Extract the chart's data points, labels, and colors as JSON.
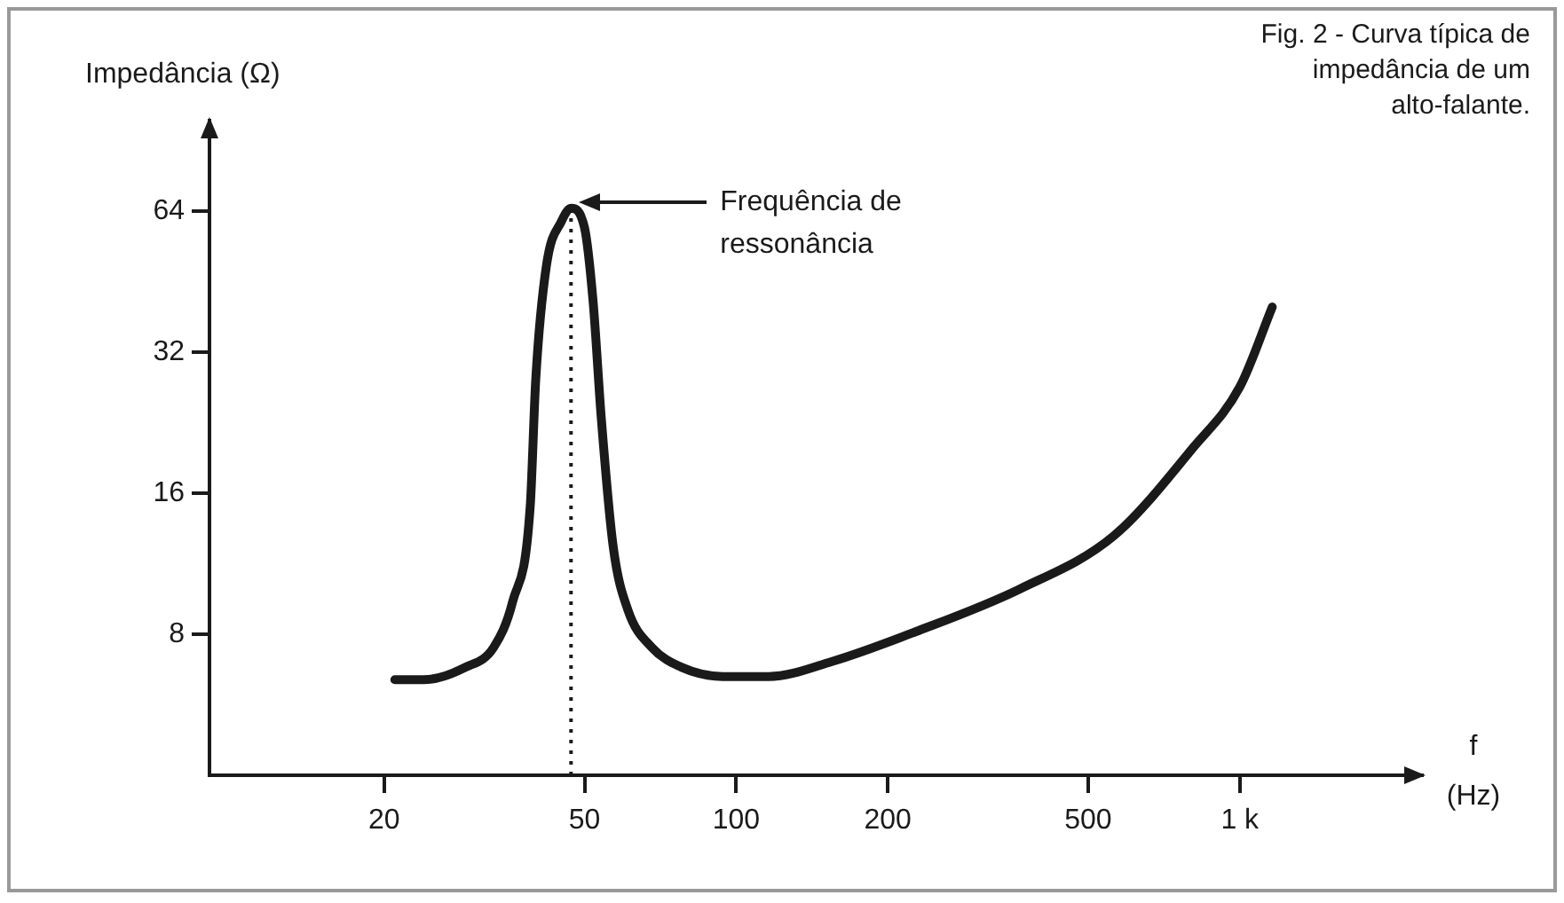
{
  "chart_data": {
    "type": "line",
    "title": "Fig. 2 - Curva típica de impedância de um alto-falante.",
    "xlabel": "f (Hz)",
    "ylabel": "Impedância (Ω)",
    "x": [
      21,
      24,
      29,
      33,
      36,
      39,
      40,
      42,
      45,
      47,
      50,
      52,
      54,
      57,
      61,
      68,
      78,
      94,
      116,
      155,
      227,
      366,
      563,
      807,
      1000,
      1160
    ],
    "series": [
      {
        "color": "#1a1a1a",
        "values": [
          6.4,
          6.4,
          6.8,
          7.5,
          9.4,
          15,
          28,
          49,
          61,
          65,
          59,
          41,
          23,
          12.3,
          9,
          7.5,
          6.8,
          6.5,
          6.5,
          7,
          8.1,
          10,
          13,
          20,
          27,
          40
        ]
      }
    ],
    "xlim": [
      9,
      2300
    ],
    "xticks": [
      20,
      50,
      100,
      200,
      500,
      {
        "value": 1000,
        "label": "1 k"
      }
    ],
    "ylim": [
      4,
      100
    ],
    "yticks": [
      8,
      16,
      32,
      64
    ],
    "log": "xy",
    "grid": false,
    "legend": false,
    "marker": "none",
    "line_style": "solid",
    "ref_lines": [
      {
        "axis": "x",
        "value": 47,
        "line_style": "dotted",
        "color": "#1a1a1a"
      }
    ],
    "annotations": [
      "Frequência de ressonância"
    ]
  }
}
